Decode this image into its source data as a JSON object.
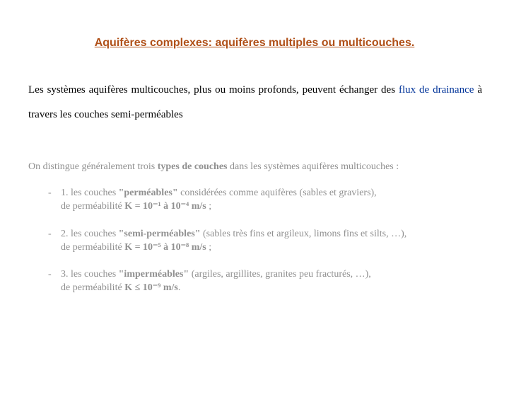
{
  "colors": {
    "title": "#b05018",
    "body_text": "#000000",
    "link": "#003399",
    "washed": "#909090",
    "background": "#ffffff"
  },
  "typography": {
    "title_fontsize": 16,
    "intro_fontsize": 15,
    "list_fontsize": 14,
    "title_family": "Arial",
    "body_family": "Times New Roman"
  },
  "title": "Aquifères complexes: aquifères multiples ou multicouches.",
  "intro": {
    "part1": "Les systèmes aquifères multicouches, plus ou moins profonds, peuvent échanger des ",
    "link1": "flux de drainance",
    "part2": " à travers les couches semi-perméables"
  },
  "list": {
    "intro_a": "On distingue généralement trois ",
    "intro_b": "types de couches",
    "intro_c": " dans les systèmes aquifères multicouches :",
    "dash": "-",
    "items": [
      {
        "prefix": "1. les couches ",
        "quoted": "\"perméables\"",
        "tail1": " considérées comme aquifères (sables et graviers),",
        "line2a": "de perméabilité ",
        "k": "K = 10⁻¹ à 10⁻⁴ m/s",
        "line2b": " ;"
      },
      {
        "prefix": "2. les couches ",
        "quoted": "\"semi-perméables\"",
        "tail1": " (sables très fins et argileux, limons fins et silts, …),",
        "line2a": "de perméabilité ",
        "k": "K = 10⁻⁵ à 10⁻⁸ m/s",
        "line2b": " ;"
      },
      {
        "prefix": "3. les couches ",
        "quoted": "\"imperméables\"",
        "tail1": " (argiles, argillites, granites peu fracturés, …),",
        "line2a": "de perméabilité ",
        "k": "K ≤ 10⁻⁹ m/s",
        "line2b": "."
      }
    ]
  }
}
